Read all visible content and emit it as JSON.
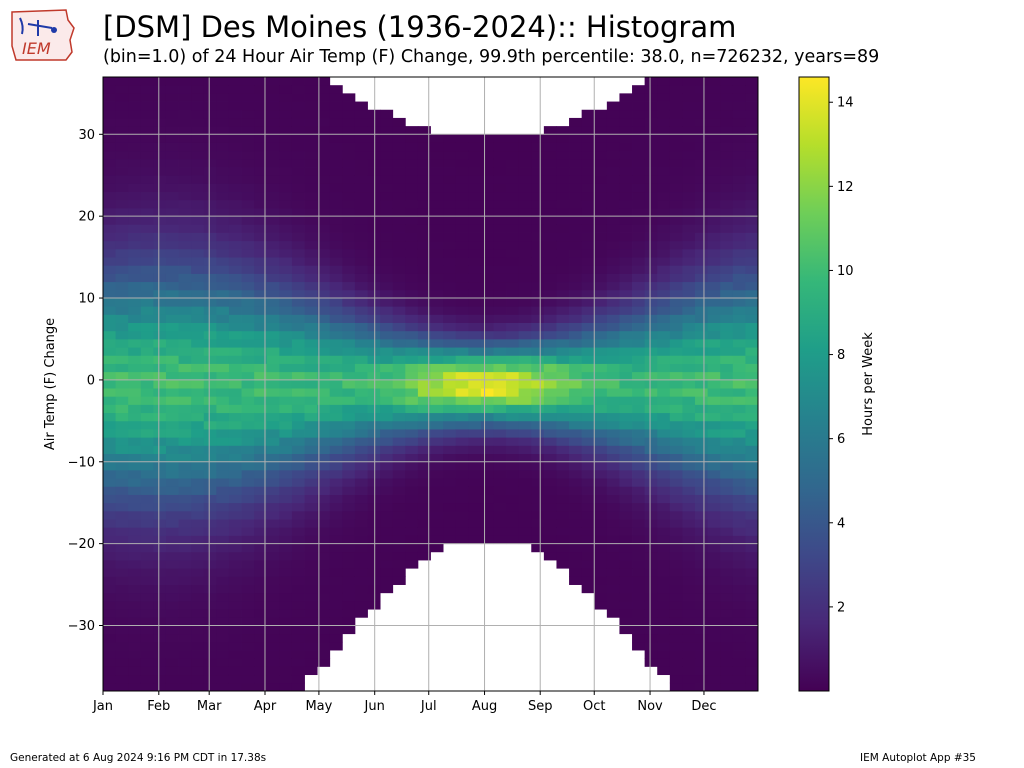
{
  "header": {
    "title": "[DSM] Des Moines (1936-2024):: Histogram",
    "subtitle": "(bin=1.0) of 24 Hour Air Temp (F) Change, 99.9th percentile: 38.0, n=726232, years=89",
    "logo_text": "IEM"
  },
  "footer": {
    "generated": "Generated at 6 Aug 2024 9:16 PM CDT in 17.38s",
    "app": "IEM Autoplot App #35"
  },
  "colors": {
    "viridis": [
      "#440154",
      "#482878",
      "#3e4989",
      "#31688e",
      "#26828e",
      "#1f9e89",
      "#35b779",
      "#6ece58",
      "#b5de2b",
      "#fde725"
    ],
    "grid": "#b0b0b0"
  },
  "chart_data": {
    "type": "heatmap",
    "title": "[DSM] Des Moines (1936-2024):: Histogram",
    "ylabel": "Air Temp (F) Change",
    "xlabel": "",
    "colorbar_label": "Hours per Week",
    "x_range_weeks": [
      0,
      52
    ],
    "ylim": [
      -38,
      37
    ],
    "months": [
      "Jan",
      "Feb",
      "Mar",
      "Apr",
      "May",
      "Jun",
      "Jul",
      "Aug",
      "Sep",
      "Oct",
      "Nov",
      "Dec"
    ],
    "month_start_weeks": [
      0,
      4.43,
      8.43,
      12.86,
      17.14,
      21.57,
      25.86,
      30.29,
      34.71,
      39,
      43.43,
      47.71
    ],
    "yticks": [
      -30,
      -20,
      -10,
      0,
      10,
      20,
      30
    ],
    "colorbar_range": [
      0,
      14.6
    ],
    "colorbar_ticks": [
      2,
      4,
      6,
      8,
      10,
      12,
      14
    ],
    "peak_value": 14.5,
    "peak_location": {
      "x": "Jul-Aug",
      "y": -1
    }
  }
}
